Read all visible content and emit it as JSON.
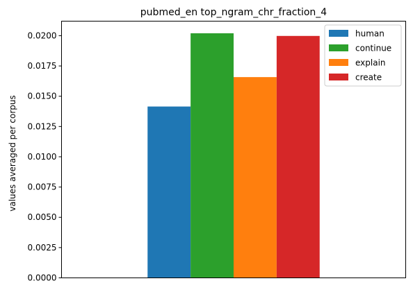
{
  "chart_data": {
    "type": "bar",
    "title": "pubmed_en top_ngram_chr_fraction_4",
    "xlabel": "",
    "ylabel": "values averaged per corpus",
    "categories": [
      ""
    ],
    "ylim": [
      0,
      0.0212
    ],
    "yticks": [
      0.0,
      0.0025,
      0.005,
      0.0075,
      0.01,
      0.0125,
      0.015,
      0.0175,
      0.02
    ],
    "ytick_labels": [
      "0.0000",
      "0.0025",
      "0.0050",
      "0.0075",
      "0.0100",
      "0.0125",
      "0.0150",
      "0.0175",
      "0.0200"
    ],
    "series": [
      {
        "name": "human",
        "values": [
          0.01415
        ],
        "color": "#1f77b4"
      },
      {
        "name": "continue",
        "values": [
          0.0202
        ],
        "color": "#2ca02c"
      },
      {
        "name": "explain",
        "values": [
          0.01658
        ],
        "color": "#ff7f0e"
      },
      {
        "name": "create",
        "values": [
          0.01998
        ],
        "color": "#d62728"
      }
    ],
    "grid": false,
    "legend_position": "top-right"
  }
}
